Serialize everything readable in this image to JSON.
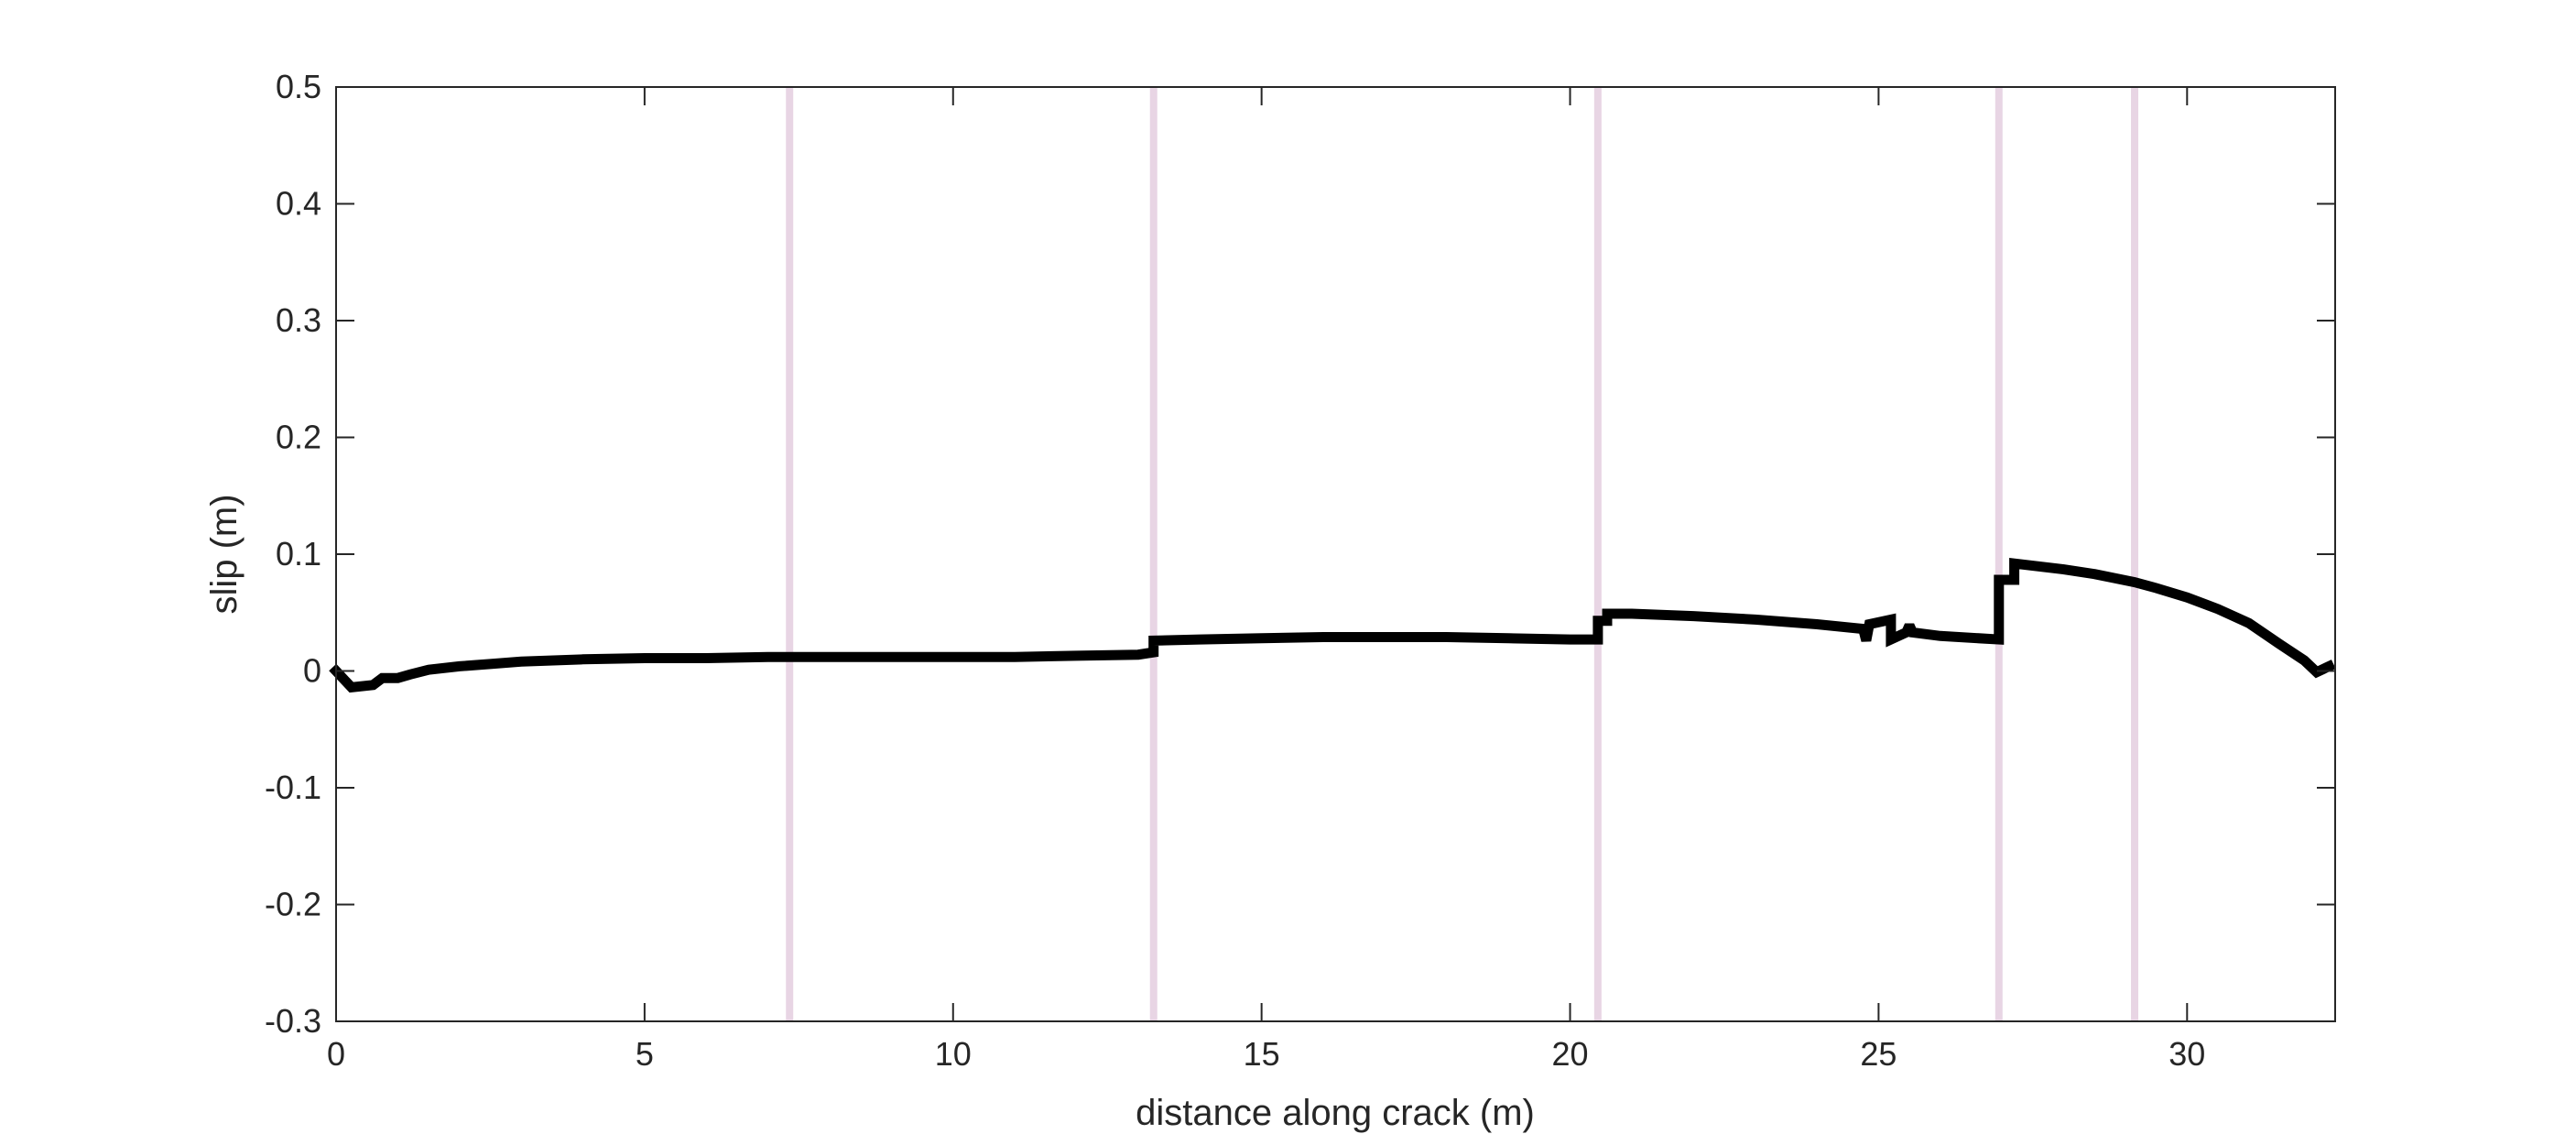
{
  "chart_data": {
    "type": "line",
    "title": "",
    "xlabel": "distance along crack (m)",
    "ylabel": "slip (m)",
    "xlim": [
      0,
      32.4
    ],
    "ylim": [
      -0.3,
      0.5
    ],
    "xticks": [
      0,
      5,
      10,
      15,
      20,
      25,
      30
    ],
    "xtick_labels": [
      "0",
      "5",
      "10",
      "15",
      "20",
      "25",
      "30"
    ],
    "yticks": [
      -0.3,
      -0.2,
      -0.1,
      0,
      0.1,
      0.2,
      0.3,
      0.4,
      0.5
    ],
    "ytick_labels": [
      "-0.3",
      "-0.2",
      "-0.1",
      "0",
      "0.1",
      "0.2",
      "0.3",
      "0.4",
      "0.5"
    ],
    "grid": false,
    "legend": "none",
    "colors": {
      "line": "#000000",
      "vertical_markers": "#e8d5e4",
      "axes": "#262626"
    },
    "vertical_markers_x": [
      7.35,
      13.25,
      20.45,
      26.95,
      29.15
    ],
    "series": [
      {
        "x": [
          0.0,
          0.25,
          0.6,
          0.75,
          1.0,
          1.2,
          1.5,
          2.0,
          2.5,
          3.0,
          4.0,
          5.0,
          6.0,
          7.0,
          7.35,
          8.0,
          9.0,
          10.0,
          11.0,
          12.0,
          13.0,
          13.25,
          13.25,
          14.0,
          15.0,
          16.0,
          17.0,
          18.0,
          19.0,
          20.0,
          20.45,
          20.45,
          20.6,
          20.6,
          21.0,
          22.0,
          23.0,
          24.0,
          24.75,
          24.8,
          24.85,
          25.2,
          25.2,
          25.45,
          25.5,
          25.55,
          26.0,
          26.95,
          26.95,
          27.2,
          27.2,
          28.0,
          28.5,
          29.15,
          29.5,
          30.0,
          30.5,
          31.0,
          31.5,
          31.9,
          32.1,
          32.3
        ],
        "y": [
          0.0,
          -0.014,
          -0.012,
          -0.006,
          -0.006,
          -0.003,
          0.001,
          0.004,
          0.006,
          0.008,
          0.01,
          0.011,
          0.011,
          0.012,
          0.012,
          0.012,
          0.012,
          0.012,
          0.012,
          0.013,
          0.014,
          0.016,
          0.026,
          0.027,
          0.028,
          0.029,
          0.029,
          0.029,
          0.028,
          0.027,
          0.027,
          0.043,
          0.043,
          0.049,
          0.049,
          0.047,
          0.044,
          0.04,
          0.036,
          0.026,
          0.04,
          0.044,
          0.027,
          0.033,
          0.039,
          0.033,
          0.03,
          0.027,
          0.078,
          0.078,
          0.092,
          0.087,
          0.083,
          0.076,
          0.071,
          0.063,
          0.053,
          0.041,
          0.023,
          0.009,
          -0.001,
          0.004
        ]
      }
    ]
  }
}
